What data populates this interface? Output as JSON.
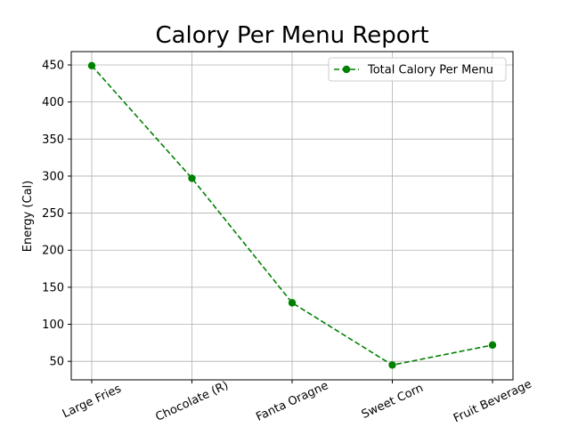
{
  "chart_data": {
    "type": "line",
    "title": "Calory Per Menu Report",
    "xlabel": "",
    "ylabel": "Energy (Cal)",
    "categories": [
      "Large Fries",
      "Chocolate (R)",
      "Fanta Oragne",
      "Sweet Corn",
      "Fruit Beverage"
    ],
    "series": [
      {
        "name": "Total Calory Per Menu",
        "values": [
          449,
          297,
          129,
          45,
          72
        ],
        "color": "#008000",
        "line_style": "dashed",
        "marker": "circle"
      }
    ],
    "ylim": [
      25,
      468
    ],
    "yticks": [
      50,
      100,
      150,
      200,
      250,
      300,
      350,
      400,
      450
    ],
    "grid": true,
    "legend_position": "top-right"
  }
}
